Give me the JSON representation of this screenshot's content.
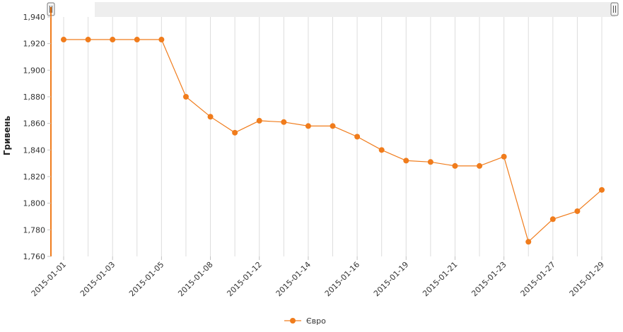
{
  "chart_data": {
    "type": "line",
    "ylabel": "Гривень",
    "ylim": [
      1.76,
      1.94
    ],
    "yticks": [
      "1,760",
      "1,780",
      "1,800",
      "1,820",
      "1,840",
      "1,860",
      "1,880",
      "1,900",
      "1,920",
      "1,940"
    ],
    "x": [
      "2015-01-01",
      "2015-01-02",
      "2015-01-03",
      "2015-01-04",
      "2015-01-05",
      "2015-01-06",
      "2015-01-08",
      "2015-01-10",
      "2015-01-12",
      "2015-01-13",
      "2015-01-14",
      "2015-01-15",
      "2015-01-16",
      "2015-01-17",
      "2015-01-19",
      "2015-01-20",
      "2015-01-21",
      "2015-01-22",
      "2015-01-23",
      "2015-01-25",
      "2015-01-27",
      "2015-01-28",
      "2015-01-29"
    ],
    "xtick_labels": [
      "2015-01-01",
      "2015-01-03",
      "2015-01-05",
      "2015-01-08",
      "2015-01-12",
      "2015-01-14",
      "2015-01-16",
      "2015-01-19",
      "2015-01-21",
      "2015-01-23",
      "2015-01-27",
      "2015-01-29"
    ],
    "grid": true,
    "legend_position": "bottom-center",
    "series": [
      {
        "name": "Євро",
        "color": "#f07c1c",
        "values": [
          1.923,
          1.923,
          1.923,
          1.923,
          1.923,
          1.88,
          1.865,
          1.853,
          1.862,
          1.861,
          1.858,
          1.858,
          1.85,
          1.84,
          1.832,
          1.831,
          1.828,
          1.828,
          1.835,
          1.771,
          1.788,
          1.794,
          1.81
        ]
      }
    ]
  },
  "colors": {
    "series": "#f07c1c",
    "grid": "#dddddd",
    "navigator_bar": "#eeeeee"
  },
  "navigator": {
    "left_handle_icon": "scroll-handle-icon",
    "right_handle_icon": "scroll-handle-icon"
  }
}
